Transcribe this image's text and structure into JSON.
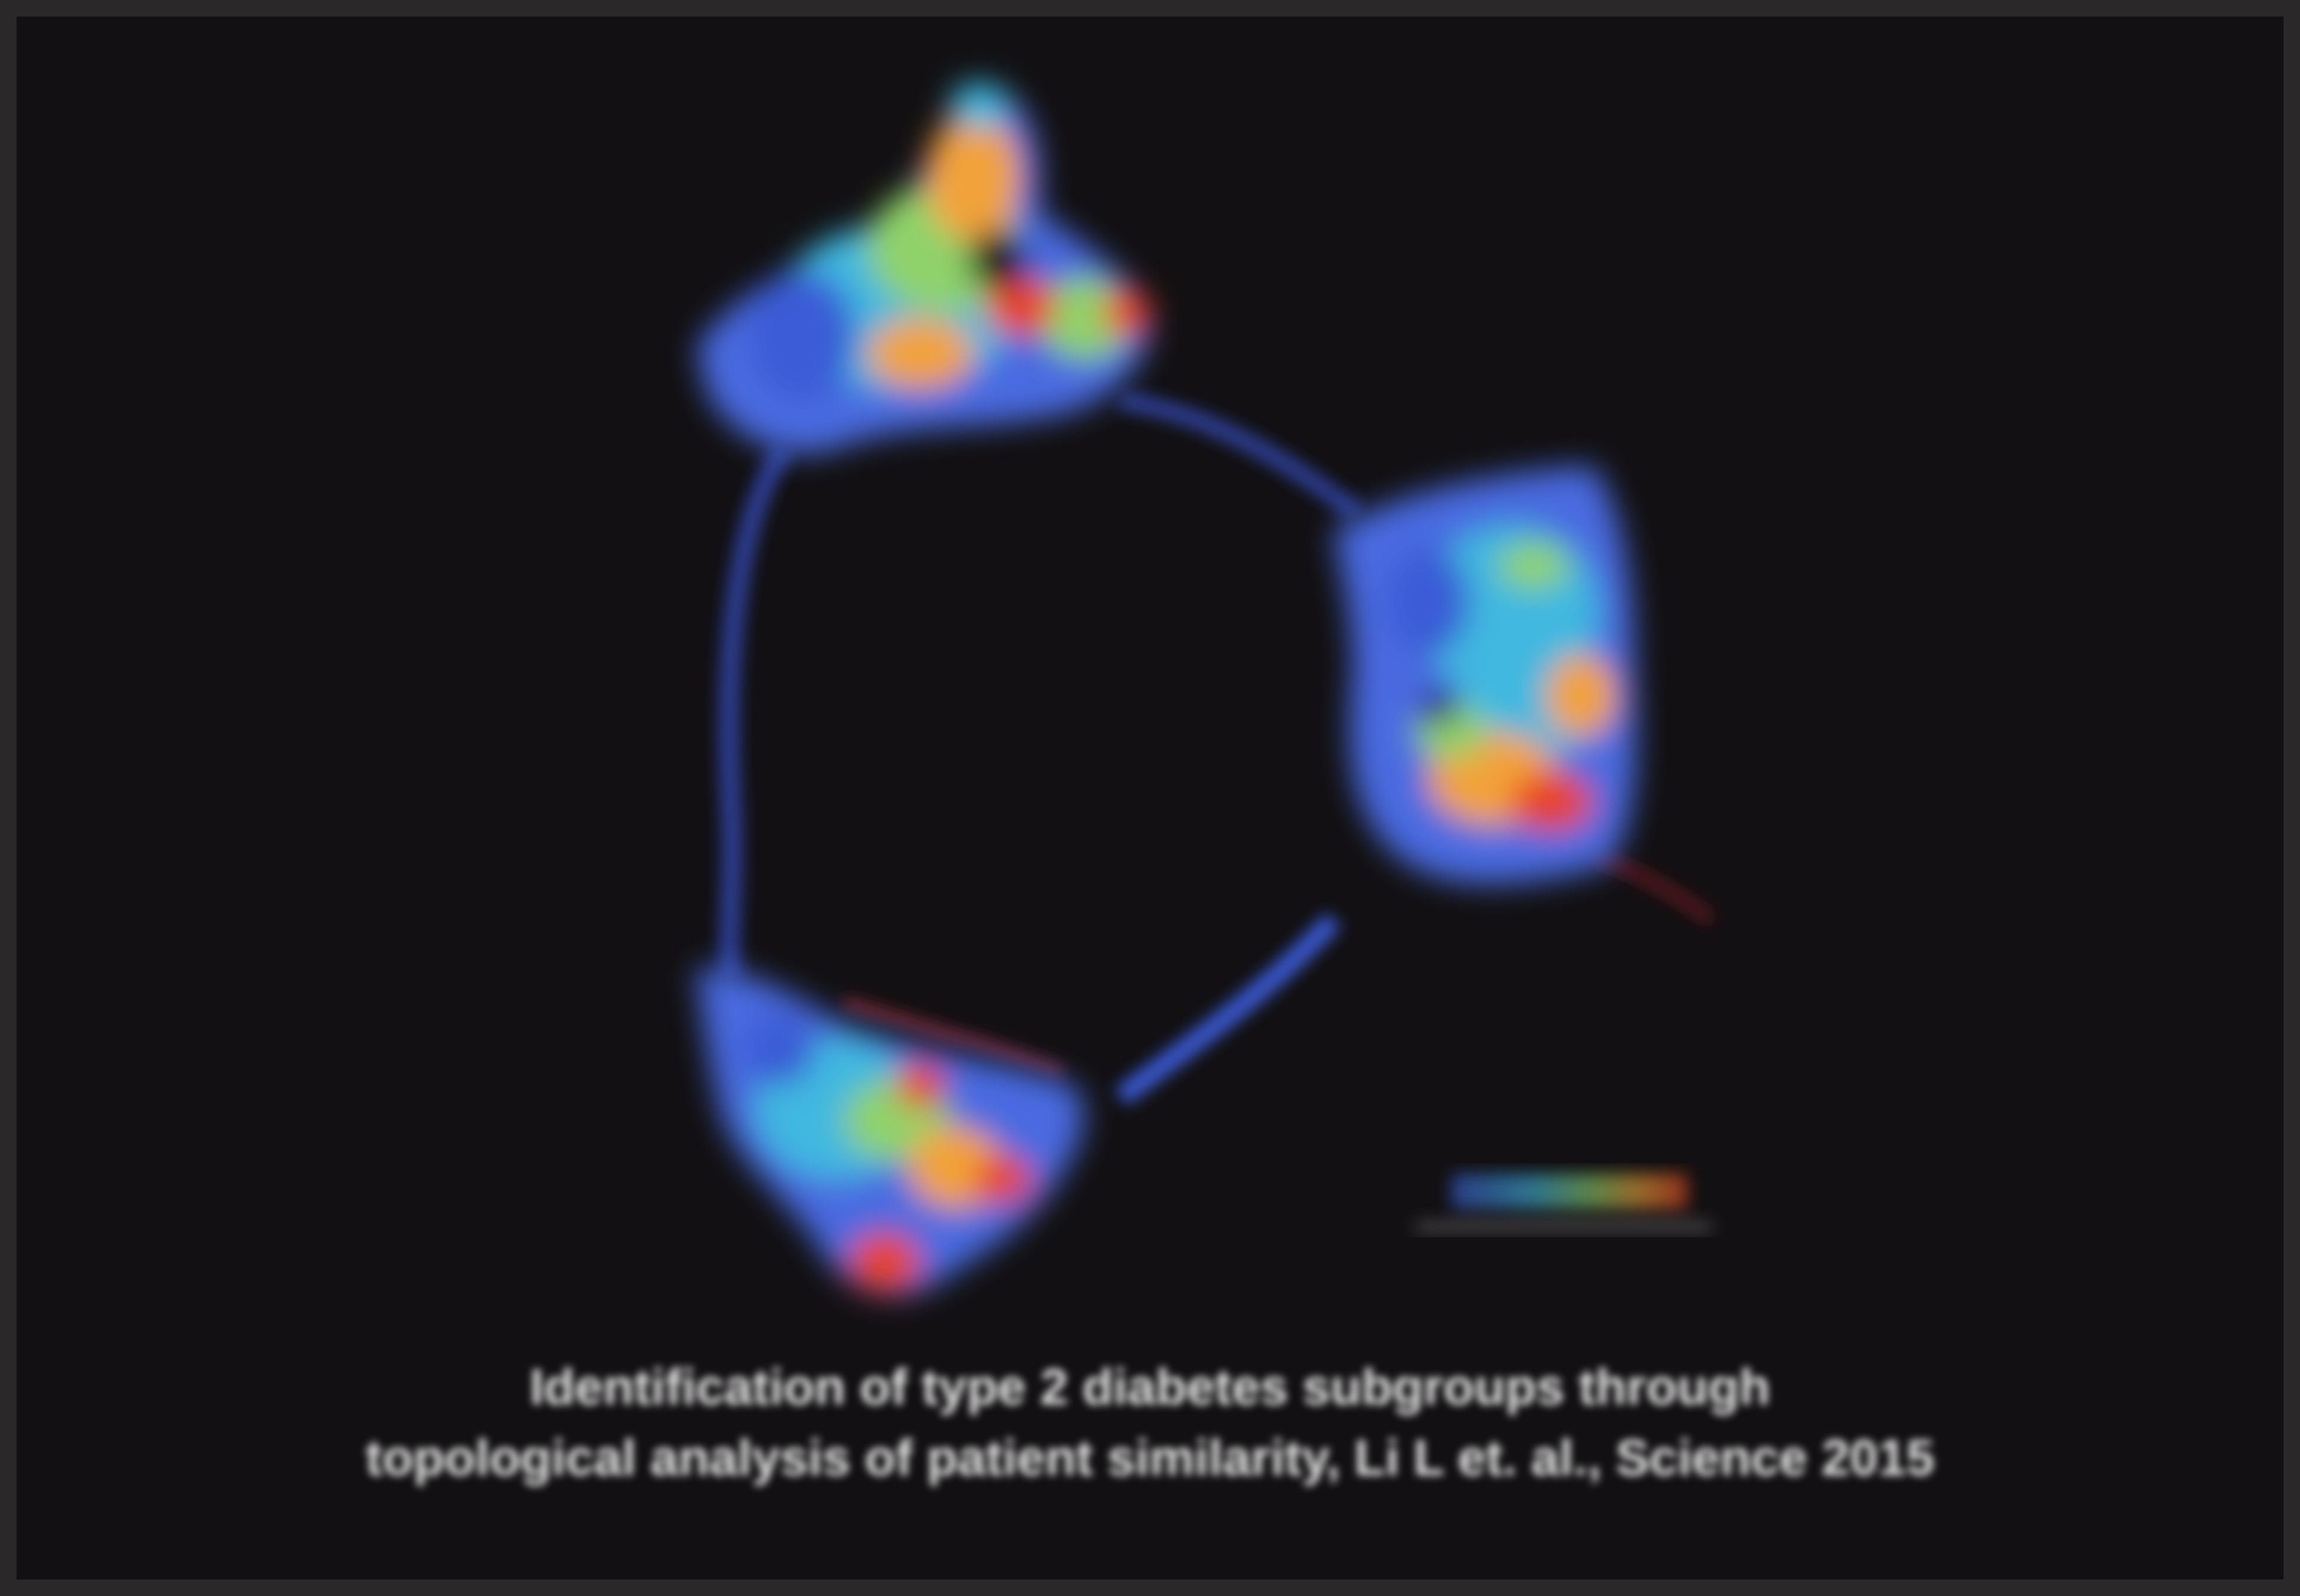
{
  "figure": {
    "labels": {
      "top_left": "",
      "top_right": "",
      "bottom_left": ""
    },
    "scale": {
      "min_label": "",
      "max_label": ""
    },
    "colors": {
      "background": "#121012",
      "low": "#3b5bd6",
      "mid": "#40b8e0",
      "mid_high": "#8fd26a",
      "high": "#f2a23a",
      "max": "#e8431f"
    }
  },
  "caption": {
    "line1": "Identification of type 2 diabetes subgroups through",
    "line2": "topological analysis of patient similarity, Li L et. al., Science 2015"
  }
}
